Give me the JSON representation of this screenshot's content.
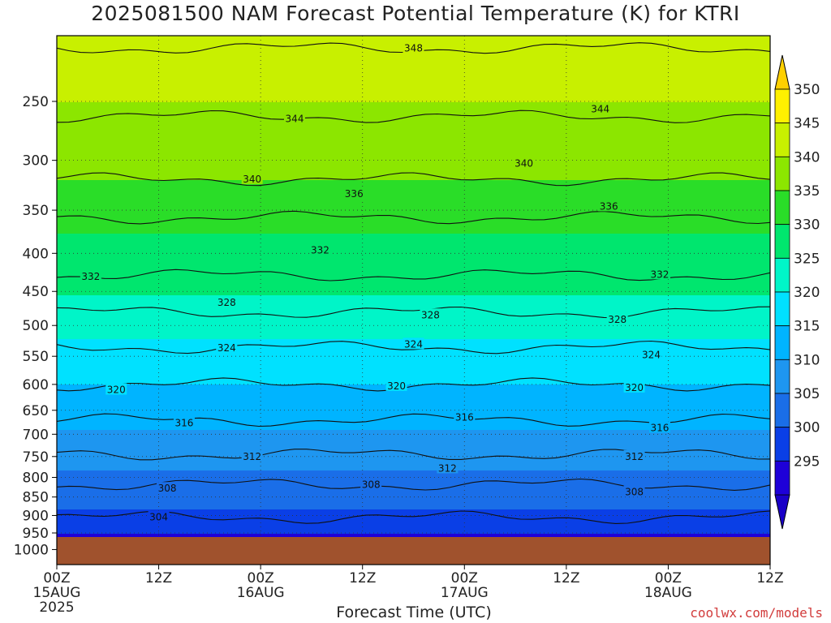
{
  "chart_data": {
    "type": "heatmap",
    "title": "2025081500 NAM Forecast Potential Temperature (K) for KTRI",
    "xlabel": "Forecast Time (UTC)",
    "ylabel": "",
    "credit": "coolwx.com/models",
    "y_axis": {
      "scale": "log-pressure",
      "inverted": true,
      "ticks": [
        250,
        300,
        350,
        400,
        450,
        500,
        550,
        600,
        650,
        700,
        750,
        800,
        850,
        900,
        950,
        1000
      ]
    },
    "x_axis": {
      "range_hours": [
        0,
        84
      ],
      "ticks": [
        {
          "hour": 0,
          "lines": [
            "00Z",
            "15AUG",
            "2025"
          ]
        },
        {
          "hour": 12,
          "lines": [
            "12Z"
          ]
        },
        {
          "hour": 24,
          "lines": [
            "00Z",
            "16AUG"
          ]
        },
        {
          "hour": 36,
          "lines": [
            "12Z"
          ]
        },
        {
          "hour": 48,
          "lines": [
            "00Z",
            "17AUG"
          ]
        },
        {
          "hour": 60,
          "lines": [
            "12Z"
          ]
        },
        {
          "hour": 72,
          "lines": [
            "00Z",
            "18AUG"
          ]
        },
        {
          "hour": 84,
          "lines": [
            "12Z"
          ]
        }
      ]
    },
    "colorbar": {
      "labels": [
        295,
        300,
        305,
        310,
        315,
        320,
        325,
        330,
        335,
        340,
        345,
        350
      ],
      "bands": [
        {
          "value": 295,
          "color": "#1e00d8"
        },
        {
          "value": 300,
          "color": "#0a3fe6"
        },
        {
          "value": 305,
          "color": "#1a6ee8"
        },
        {
          "value": 310,
          "color": "#1e96f0"
        },
        {
          "value": 315,
          "color": "#00b4ff"
        },
        {
          "value": 320,
          "color": "#00e1ff"
        },
        {
          "value": 325,
          "color": "#00f5c8"
        },
        {
          "value": 330,
          "color": "#00e66e"
        },
        {
          "value": 335,
          "color": "#2add28"
        },
        {
          "value": 340,
          "color": "#8ce600"
        },
        {
          "value": 345,
          "color": "#c8f000"
        },
        {
          "value": 350,
          "color": "#fff000"
        }
      ],
      "below_color": "#1a00c8",
      "above_color": "#ffd000"
    },
    "series": [
      {
        "level": 348,
        "values_hpa": [
          [
            0,
            212
          ],
          [
            84,
            212
          ]
        ]
      },
      {
        "level": 344,
        "values_hpa": [
          [
            0,
            262
          ],
          [
            84,
            262
          ]
        ]
      },
      {
        "level": 340,
        "values_hpa": [
          [
            0,
            318
          ],
          [
            84,
            318
          ]
        ]
      },
      {
        "level": 336,
        "values_hpa": [
          [
            0,
            358
          ],
          [
            84,
            358
          ]
        ]
      },
      {
        "level": 332,
        "values_hpa": [
          [
            0,
            428
          ],
          [
            84,
            428
          ]
        ]
      },
      {
        "level": 328,
        "values_hpa": [
          [
            0,
            480
          ],
          [
            84,
            480
          ]
        ]
      },
      {
        "level": 324,
        "values_hpa": [
          [
            0,
            535
          ],
          [
            84,
            535
          ]
        ]
      },
      {
        "level": 320,
        "values_hpa": [
          [
            0,
            600
          ],
          [
            84,
            600
          ]
        ]
      },
      {
        "level": 316,
        "values_hpa": [
          [
            0,
            670
          ],
          [
            84,
            670
          ]
        ]
      },
      {
        "level": 312,
        "values_hpa": [
          [
            0,
            745
          ],
          [
            84,
            745
          ]
        ]
      },
      {
        "level": 308,
        "values_hpa": [
          [
            0,
            818
          ],
          [
            84,
            818
          ]
        ]
      },
      {
        "level": 304,
        "values_hpa": [
          [
            0,
            905
          ],
          [
            84,
            905
          ]
        ]
      }
    ],
    "contour_labels": [
      {
        "text": "348",
        "hour": 42,
        "hpa": 212
      },
      {
        "text": "344",
        "hour": 28,
        "hpa": 264
      },
      {
        "text": "344",
        "hour": 64,
        "hpa": 256
      },
      {
        "text": "340",
        "hour": 23,
        "hpa": 318
      },
      {
        "text": "340",
        "hour": 55,
        "hpa": 303
      },
      {
        "text": "336",
        "hour": 35,
        "hpa": 333
      },
      {
        "text": "336",
        "hour": 65,
        "hpa": 346
      },
      {
        "text": "332",
        "hour": 4,
        "hpa": 430
      },
      {
        "text": "332",
        "hour": 31,
        "hpa": 396
      },
      {
        "text": "332",
        "hour": 71,
        "hpa": 427
      },
      {
        "text": "328",
        "hour": 20,
        "hpa": 466
      },
      {
        "text": "328",
        "hour": 44,
        "hpa": 484
      },
      {
        "text": "328",
        "hour": 66,
        "hpa": 491
      },
      {
        "text": "324",
        "hour": 20,
        "hpa": 536
      },
      {
        "text": "324",
        "hour": 42,
        "hpa": 530
      },
      {
        "text": "324",
        "hour": 70,
        "hpa": 548
      },
      {
        "text": "320",
        "hour": 7,
        "hpa": 610
      },
      {
        "text": "320",
        "hour": 40,
        "hpa": 603
      },
      {
        "text": "320",
        "hour": 68,
        "hpa": 606
      },
      {
        "text": "316",
        "hour": 15,
        "hpa": 676
      },
      {
        "text": "316",
        "hour": 48,
        "hpa": 664
      },
      {
        "text": "316",
        "hour": 71,
        "hpa": 686
      },
      {
        "text": "312",
        "hour": 23,
        "hpa": 750
      },
      {
        "text": "312",
        "hour": 46,
        "hpa": 778
      },
      {
        "text": "312",
        "hour": 68,
        "hpa": 750
      },
      {
        "text": "308",
        "hour": 13,
        "hpa": 828
      },
      {
        "text": "308",
        "hour": 37,
        "hpa": 818
      },
      {
        "text": "308",
        "hour": 68,
        "hpa": 837
      },
      {
        "text": "304",
        "hour": 12,
        "hpa": 905
      }
    ],
    "terrain": {
      "surface_hpa": 962,
      "color": "#a0522d"
    }
  }
}
